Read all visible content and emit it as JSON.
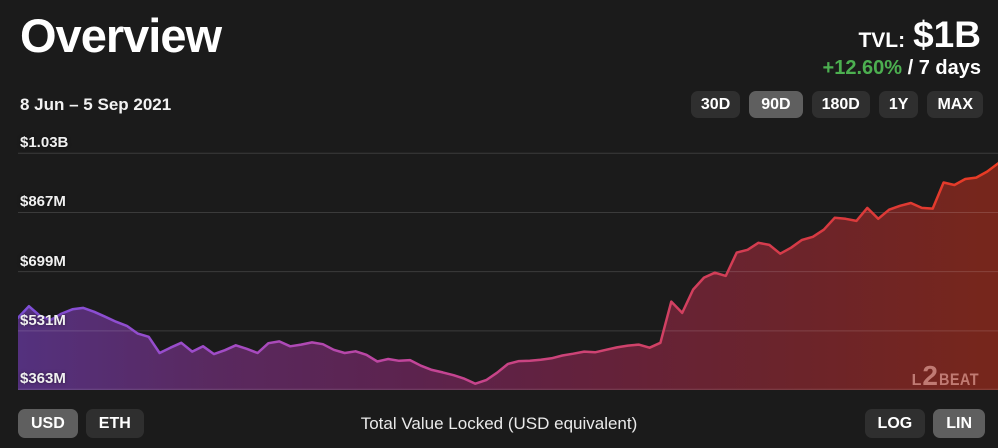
{
  "header": {
    "title": "Overview",
    "tvl_label": "TVL:",
    "tvl_value": "$1B",
    "change_percent": "+12.60%",
    "change_period": " / 7 days",
    "date_range": "8 Jun – 5 Sep 2021"
  },
  "range_buttons": [
    {
      "label": "30D",
      "active": false
    },
    {
      "label": "90D",
      "active": true
    },
    {
      "label": "180D",
      "active": false
    },
    {
      "label": "1Y",
      "active": false
    },
    {
      "label": "MAX",
      "active": false
    }
  ],
  "footer": {
    "currency_buttons": [
      {
        "label": "USD",
        "active": true
      },
      {
        "label": "ETH",
        "active": false
      }
    ],
    "caption": "Total Value Locked (USD equivalent)",
    "scale_buttons": [
      {
        "label": "LOG",
        "active": false
      },
      {
        "label": "LIN",
        "active": true
      }
    ]
  },
  "watermark": {
    "l": "L",
    "two": "2",
    "beat": "BEAT"
  },
  "colors": {
    "background": "#1b1b1b",
    "positive_green": "#4caf50",
    "button_inactive": "#2f2f2f",
    "button_active": "#5f5f5f",
    "gridline": "rgba(255,255,255,0.14)"
  },
  "chart_data": {
    "type": "area",
    "title": "Total Value Locked (USD equivalent)",
    "x_range": [
      "8 Jun 2021",
      "5 Sep 2021"
    ],
    "x_points": 91,
    "unit": "USD millions",
    "ylim": [
      363,
      1035
    ],
    "grid": true,
    "y_ticks": [
      {
        "label": "$1.03B",
        "value": 1035
      },
      {
        "label": "$867M",
        "value": 867
      },
      {
        "label": "$699M",
        "value": 699
      },
      {
        "label": "$531M",
        "value": 531
      },
      {
        "label": "$363M",
        "value": 363
      }
    ],
    "values": [
      568,
      601,
      574,
      562,
      580,
      592,
      596,
      585,
      571,
      557,
      545,
      523,
      514,
      468,
      483,
      497,
      472,
      487,
      465,
      476,
      490,
      480,
      468,
      496,
      501,
      487,
      492,
      498,
      493,
      477,
      468,
      473,
      463,
      444,
      451,
      446,
      448,
      432,
      420,
      413,
      405,
      395,
      381,
      391,
      412,
      437,
      445,
      446,
      449,
      453,
      461,
      466,
      472,
      470,
      477,
      484,
      489,
      492,
      483,
      497,
      614,
      582,
      648,
      682,
      696,
      687,
      753,
      761,
      781,
      775,
      750,
      767,
      789,
      798,
      818,
      852,
      849,
      843,
      880,
      849,
      875,
      886,
      894,
      880,
      878,
      952,
      945,
      962,
      966,
      983,
      1006
    ],
    "line_gradient": [
      "#7e4fd8",
      "#a04cc8",
      "#c2459a",
      "#cf4370",
      "#d63a45",
      "#e93b22"
    ],
    "fill_gradient": [
      "#54317e",
      "#59295f",
      "#5c234e",
      "#64223a",
      "#6c242a",
      "#77261b"
    ],
    "legend": "none"
  }
}
